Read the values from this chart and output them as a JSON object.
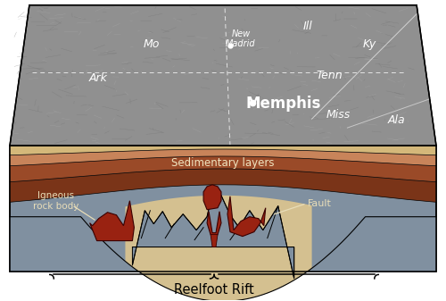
{
  "fig_width": 5.0,
  "fig_height": 3.37,
  "dpi": 100,
  "bg_color": "#ffffff",
  "igneous_color": "#992211",
  "igneous_dark": "#3a0000",
  "sed_label": "Sedimentary layers",
  "fault_label": "Fault",
  "igneous_label": "Igneous\nrock body",
  "rift_label": "Reelfoot Rift",
  "map_gray": "#909090",
  "basement_gray": "#8090a0",
  "sed_tan": "#d4b87a",
  "sed_brown1": "#c8845a",
  "sed_brown2": "#9a4a28",
  "sed_brown3": "#7a3418"
}
